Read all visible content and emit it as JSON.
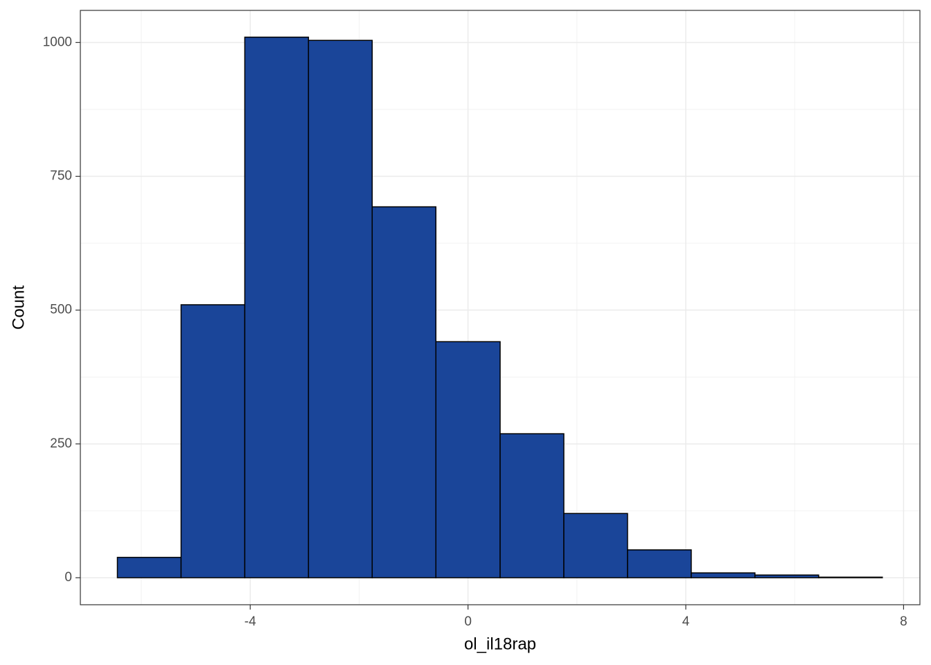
{
  "chart_data": {
    "type": "histogram",
    "x_label": "ol_il18rap",
    "y_label": "Count",
    "bins": [
      -6.44,
      -5.27,
      -4.1,
      -2.93,
      -1.76,
      -0.59,
      0.59,
      1.76,
      2.93,
      4.1,
      5.27,
      6.44,
      7.61
    ],
    "values": [
      38,
      510,
      1010,
      1004,
      693,
      441,
      269,
      120,
      52,
      9,
      5,
      1
    ],
    "color": "#1a4599",
    "edge_color": "#000000",
    "xlim": [
      -7.12,
      8.3
    ],
    "ylim": [
      -50.5,
      1060
    ],
    "xticks": [
      -4,
      0,
      4,
      8
    ],
    "yticks": [
      0,
      250,
      500,
      750,
      1000
    ],
    "minor_xgrid": [
      -6,
      -2,
      2,
      6
    ],
    "minor_ygrid": [
      125,
      375,
      625,
      875
    ],
    "grid": true
  }
}
